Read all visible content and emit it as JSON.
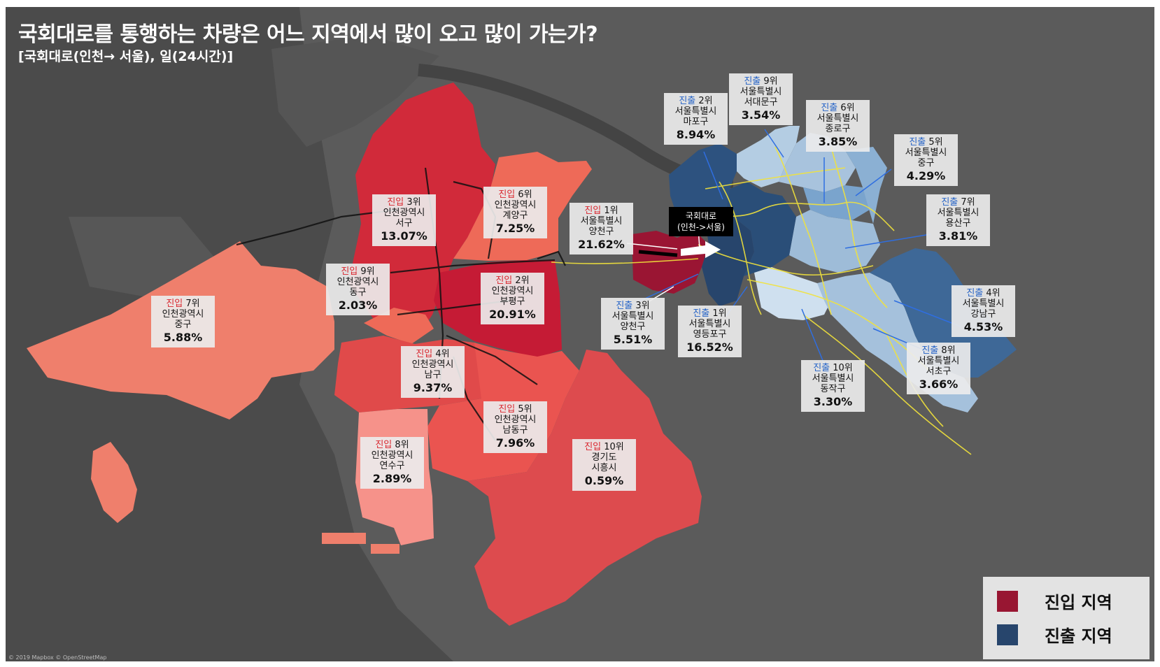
{
  "title": "국회대로를 통행하는 차량은 어느 지역에서 많이 오고 많이 가는가?",
  "subtitle": "[국회대로(인천→ 서울), 일(24시간)]",
  "road_label": {
    "line1": "국회대로",
    "line2": "(인천->서울)"
  },
  "legend": {
    "entry_label": "진입 지역",
    "exit_label": "진출 지역",
    "entry_color": "#981632",
    "exit_color": "#27456c"
  },
  "attribution": "© 2019 Mapbox © OpenStreetMap",
  "entry_regions": [
    {
      "kind": "진입",
      "rank": "3위",
      "city": "인천광역시",
      "district": "서구",
      "pct": "13.07%"
    },
    {
      "kind": "진입",
      "rank": "6위",
      "city": "인천광역시",
      "district": "계양구",
      "pct": "7.25%"
    },
    {
      "kind": "진입",
      "rank": "1위",
      "city": "서울특별시",
      "district": "양천구",
      "pct": "21.62%"
    },
    {
      "kind": "진입",
      "rank": "9위",
      "city": "인천광역시",
      "district": "동구",
      "pct": "2.03%"
    },
    {
      "kind": "진입",
      "rank": "2위",
      "city": "인천광역시",
      "district": "부평구",
      "pct": "20.91%"
    },
    {
      "kind": "진입",
      "rank": "7위",
      "city": "인천광역시",
      "district": "중구",
      "pct": "5.88%"
    },
    {
      "kind": "진입",
      "rank": "4위",
      "city": "인천광역시",
      "district": "남구",
      "pct": "9.37%"
    },
    {
      "kind": "진입",
      "rank": "5위",
      "city": "인천광역시",
      "district": "남동구",
      "pct": "7.96%"
    },
    {
      "kind": "진입",
      "rank": "8위",
      "city": "인천광역시",
      "district": "연수구",
      "pct": "2.89%"
    },
    {
      "kind": "진입",
      "rank": "10위",
      "city": "경기도",
      "district": "시흥시",
      "pct": "0.59%"
    }
  ],
  "exit_regions": [
    {
      "kind": "진출",
      "rank": "2위",
      "city": "서울특별시",
      "district": "마포구",
      "pct": "8.94%"
    },
    {
      "kind": "진출",
      "rank": "9위",
      "city": "서울특별시",
      "district": "서대문구",
      "pct": "3.54%"
    },
    {
      "kind": "진출",
      "rank": "6위",
      "city": "서울특별시",
      "district": "종로구",
      "pct": "3.85%"
    },
    {
      "kind": "진출",
      "rank": "5위",
      "city": "서울특별시",
      "district": "중구",
      "pct": "4.29%"
    },
    {
      "kind": "진출",
      "rank": "7위",
      "city": "서울특별시",
      "district": "용산구",
      "pct": "3.81%"
    },
    {
      "kind": "진출",
      "rank": "3위",
      "city": "서울특별시",
      "district": "양천구",
      "pct": "5.51%"
    },
    {
      "kind": "진출",
      "rank": "1위",
      "city": "서울특별시",
      "district": "영등포구",
      "pct": "16.52%"
    },
    {
      "kind": "진출",
      "rank": "4위",
      "city": "서울특별시",
      "district": "강남구",
      "pct": "4.53%"
    },
    {
      "kind": "진출",
      "rank": "8위",
      "city": "서울특별시",
      "district": "서초구",
      "pct": "3.66%"
    },
    {
      "kind": "진출",
      "rank": "10위",
      "city": "서울특별시",
      "district": "동작구",
      "pct": "3.30%"
    }
  ]
}
